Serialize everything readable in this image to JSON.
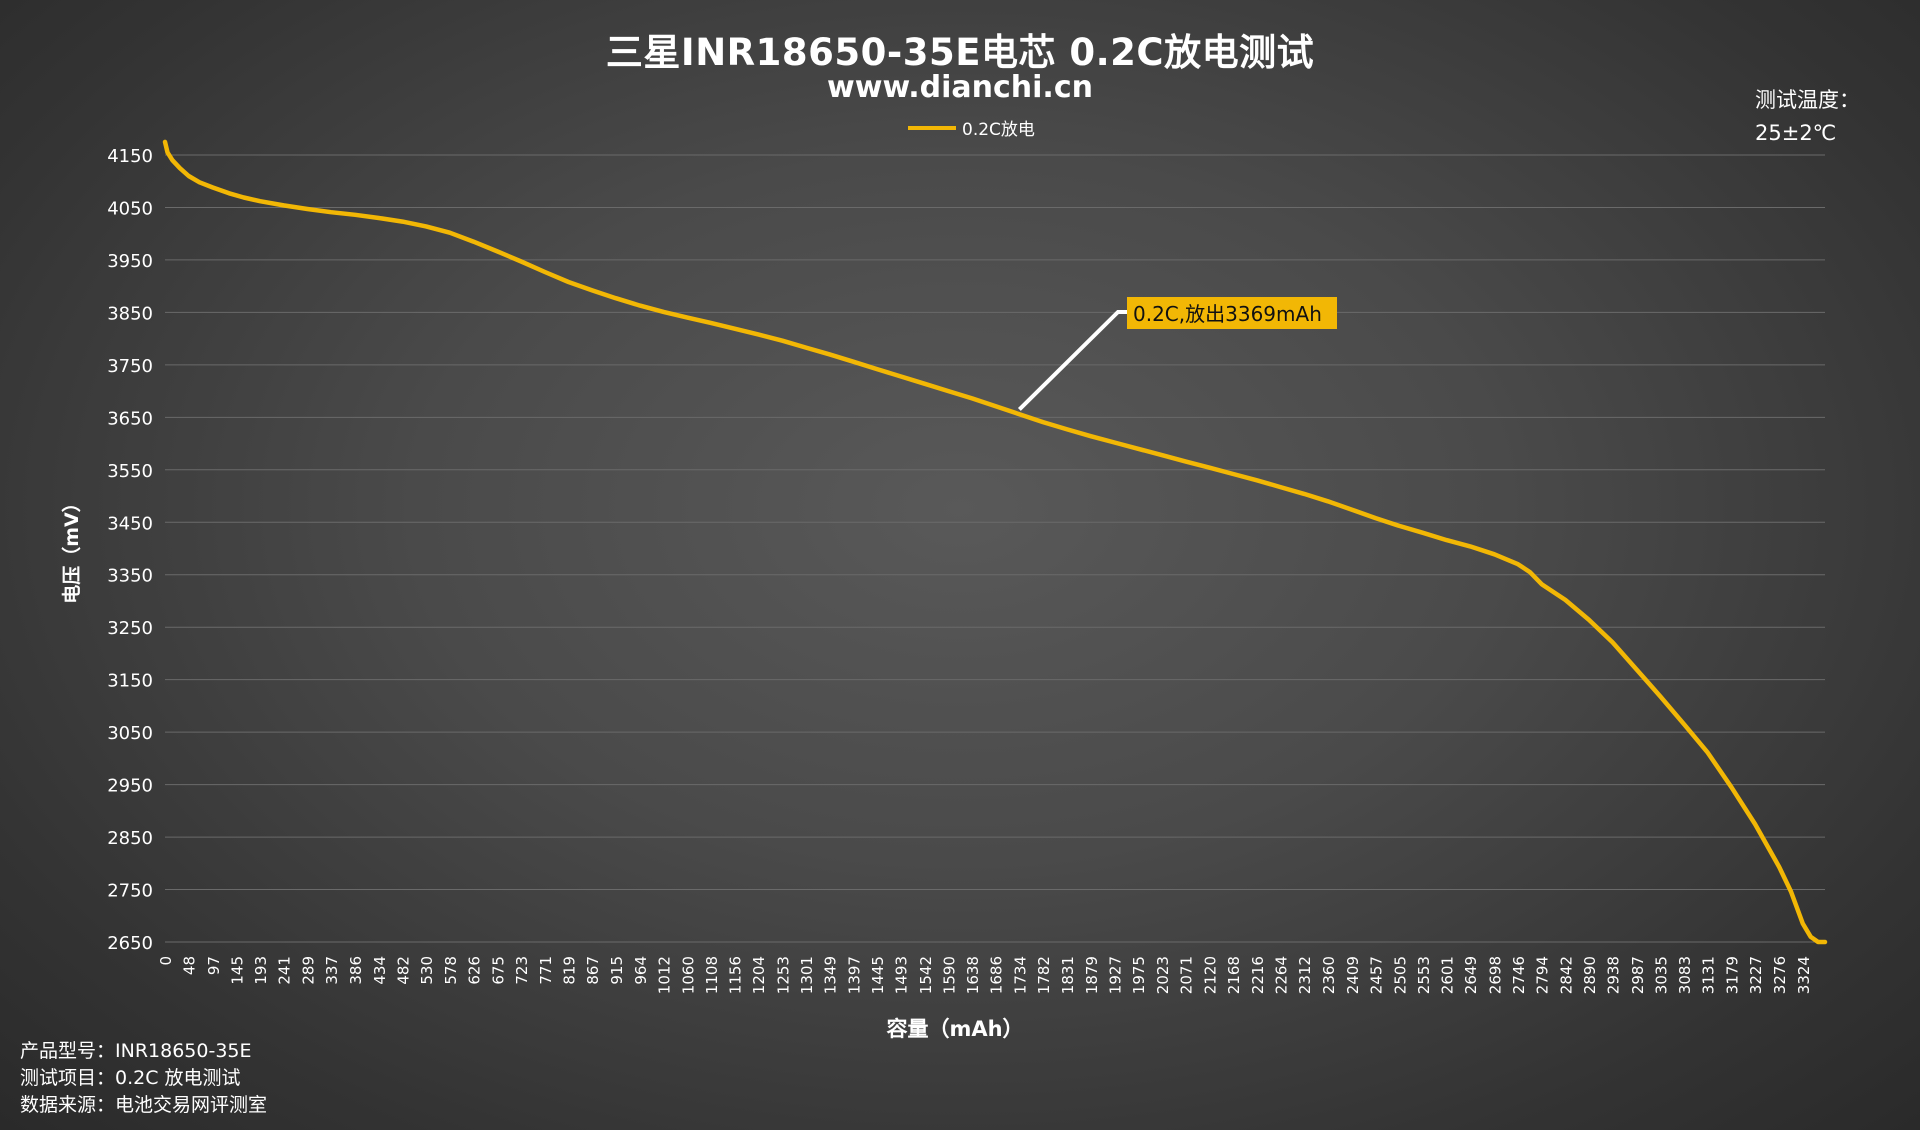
{
  "header": {
    "title": "三星INR18650-35E电芯 0.2C放电测试",
    "subtitle": "www.dianchi.cn"
  },
  "temperature": {
    "label": "测试温度：",
    "value": "25±2℃"
  },
  "footer": {
    "model_label": "产品型号：",
    "model_value": "INR18650-35E",
    "item_label": "测试项目：",
    "item_value": "0.2C 放电测试",
    "source_label": "数据来源：",
    "source_value": "电池交易网评测室"
  },
  "colors": {
    "series": "#f2b705",
    "grid": "#6a6a6a",
    "text": "#ffffff",
    "callout_bg": "#f2b705",
    "callout_line": "#ffffff"
  },
  "chart_data": {
    "type": "line",
    "xlabel": "容量（mAh）",
    "ylabel": "电压（mV）",
    "ylim": [
      2650,
      4150
    ],
    "yticks": [
      4150,
      4050,
      3950,
      3850,
      3750,
      3650,
      3550,
      3450,
      3350,
      3250,
      3150,
      3050,
      2950,
      2850,
      2750,
      2650
    ],
    "xlim": [
      0,
      3369
    ],
    "xticks": [
      0,
      48,
      97,
      145,
      193,
      241,
      289,
      337,
      386,
      434,
      482,
      530,
      578,
      626,
      675,
      723,
      771,
      819,
      867,
      915,
      964,
      1012,
      1060,
      1108,
      1156,
      1204,
      1253,
      1301,
      1349,
      1397,
      1445,
      1493,
      1542,
      1590,
      1638,
      1686,
      1734,
      1782,
      1831,
      1879,
      1927,
      1975,
      2023,
      2071,
      2120,
      2168,
      2216,
      2264,
      2312,
      2360,
      2409,
      2457,
      2505,
      2553,
      2601,
      2649,
      2698,
      2746,
      2794,
      2842,
      2890,
      2938,
      2987,
      3035,
      3083,
      3131,
      3179,
      3227,
      3276,
      3324
    ],
    "legend": "top-center",
    "grid": true,
    "series": [
      {
        "name": "0.2C放电",
        "x": [
          0,
          5,
          15,
          30,
          48,
          70,
          97,
          130,
          160,
          193,
          241,
          289,
          337,
          386,
          434,
          482,
          530,
          578,
          626,
          675,
          723,
          771,
          819,
          867,
          915,
          964,
          1012,
          1060,
          1108,
          1156,
          1204,
          1253,
          1301,
          1349,
          1397,
          1445,
          1493,
          1542,
          1590,
          1638,
          1686,
          1734,
          1782,
          1831,
          1879,
          1927,
          1975,
          2023,
          2071,
          2120,
          2168,
          2216,
          2264,
          2312,
          2360,
          2409,
          2457,
          2505,
          2553,
          2601,
          2649,
          2698,
          2746,
          2770,
          2794,
          2842,
          2890,
          2938,
          2987,
          3035,
          3083,
          3131,
          3179,
          3227,
          3276,
          3300,
          3324,
          3340,
          3355,
          3369
        ],
        "y": [
          4175,
          4155,
          4140,
          4125,
          4110,
          4098,
          4088,
          4077,
          4069,
          4062,
          4054,
          4047,
          4041,
          4036,
          4030,
          4023,
          4014,
          4002,
          3985,
          3966,
          3947,
          3927,
          3908,
          3892,
          3877,
          3863,
          3851,
          3840,
          3830,
          3819,
          3808,
          3796,
          3783,
          3770,
          3756,
          3742,
          3728,
          3714,
          3700,
          3686,
          3671,
          3656,
          3641,
          3627,
          3614,
          3602,
          3590,
          3578,
          3566,
          3554,
          3542,
          3530,
          3517,
          3504,
          3490,
          3474,
          3458,
          3443,
          3430,
          3416,
          3404,
          3389,
          3370,
          3355,
          3332,
          3302,
          3264,
          3221,
          3169,
          3118,
          3065,
          3011,
          2945,
          2875,
          2793,
          2746,
          2685,
          2660,
          2650,
          2650
        ]
      }
    ],
    "annotation": {
      "text": "0.2C,放出3369mAh",
      "x": 1734,
      "y": 3665
    }
  }
}
